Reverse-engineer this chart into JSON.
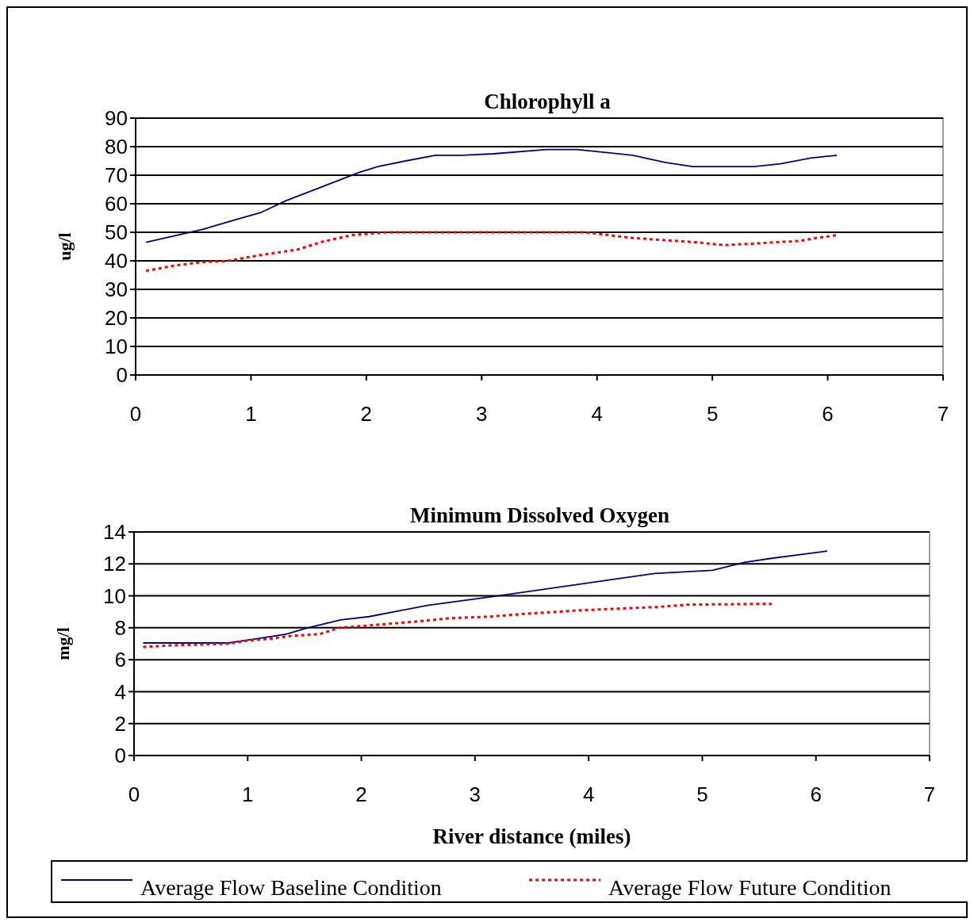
{
  "chart_data": [
    {
      "type": "line",
      "title": "Chlorophyll a",
      "ylabel": "ug/l",
      "xlim": [
        0,
        7
      ],
      "xticks": [
        0,
        1,
        2,
        3,
        4,
        5,
        6,
        7
      ],
      "ylim": [
        0,
        90
      ],
      "yticks": [
        0,
        10,
        20,
        30,
        40,
        50,
        60,
        70,
        80,
        90
      ],
      "grid": "y",
      "legend": false,
      "series": [
        {
          "color": "#000080",
          "line_style": "solid",
          "x": [
            0.09,
            0.58,
            0.83,
            1.09,
            1.3,
            1.94,
            2.1,
            2.34,
            2.6,
            2.83,
            3.1,
            3.56,
            3.83,
            4.31,
            4.59,
            4.83,
            5.36,
            5.59,
            5.85,
            6.08
          ],
          "values": [
            46.5,
            51,
            54,
            57,
            61,
            71,
            73,
            75,
            77,
            77,
            77.5,
            79,
            79,
            77,
            74.5,
            73,
            73,
            74,
            76,
            77
          ]
        },
        {
          "color": "#ff0000",
          "line_style": "dotted",
          "x": [
            0.09,
            0.36,
            0.56,
            0.8,
            1.08,
            1.41,
            1.6,
            1.87,
            2.18,
            2.6,
            3.0,
            3.5,
            3.9,
            4.31,
            4.86,
            5.1,
            5.34,
            5.76,
            5.9,
            6.08
          ],
          "values": [
            36.5,
            38.5,
            39.5,
            40,
            42,
            44,
            46.5,
            49,
            50,
            50,
            50,
            50,
            50,
            48,
            46.5,
            45.5,
            46,
            47,
            48,
            49
          ]
        }
      ]
    },
    {
      "type": "line",
      "title": "Minimum Dissolved Oxygen",
      "xlabel": "River distance (miles)",
      "ylabel": "mg/l",
      "xlim": [
        0,
        7
      ],
      "xticks": [
        0,
        1,
        2,
        3,
        4,
        5,
        6,
        7
      ],
      "ylim": [
        0,
        14
      ],
      "yticks": [
        0,
        2,
        4,
        6,
        8,
        10,
        12,
        14
      ],
      "grid": "y",
      "legend": "bottom",
      "series": [
        {
          "name": "Average Flow Baseline Condition",
          "color": "#000080",
          "line_style": "solid",
          "x": [
            0.08,
            0.83,
            1.07,
            1.34,
            1.53,
            1.82,
            2.07,
            2.58,
            3.2,
            4.58,
            5.09,
            5.37,
            5.61,
            6.1
          ],
          "values": [
            7.05,
            7.05,
            7.3,
            7.6,
            8.0,
            8.5,
            8.7,
            9.4,
            10.0,
            11.4,
            11.6,
            12.1,
            12.35,
            12.8
          ]
        },
        {
          "name": "Average Flow Future Condition",
          "color": "#ff0000",
          "line_style": "dotted",
          "x": [
            0.08,
            0.34,
            0.83,
            1.0,
            1.18,
            1.39,
            1.63,
            1.81,
            2.16,
            2.5,
            2.78,
            3.13,
            3.49,
            3.93,
            4.6,
            4.88,
            5.61
          ],
          "values": [
            6.8,
            6.9,
            7.0,
            7.2,
            7.3,
            7.5,
            7.6,
            8.0,
            8.2,
            8.4,
            8.6,
            8.7,
            8.9,
            9.1,
            9.3,
            9.45,
            9.5
          ]
        }
      ]
    }
  ]
}
